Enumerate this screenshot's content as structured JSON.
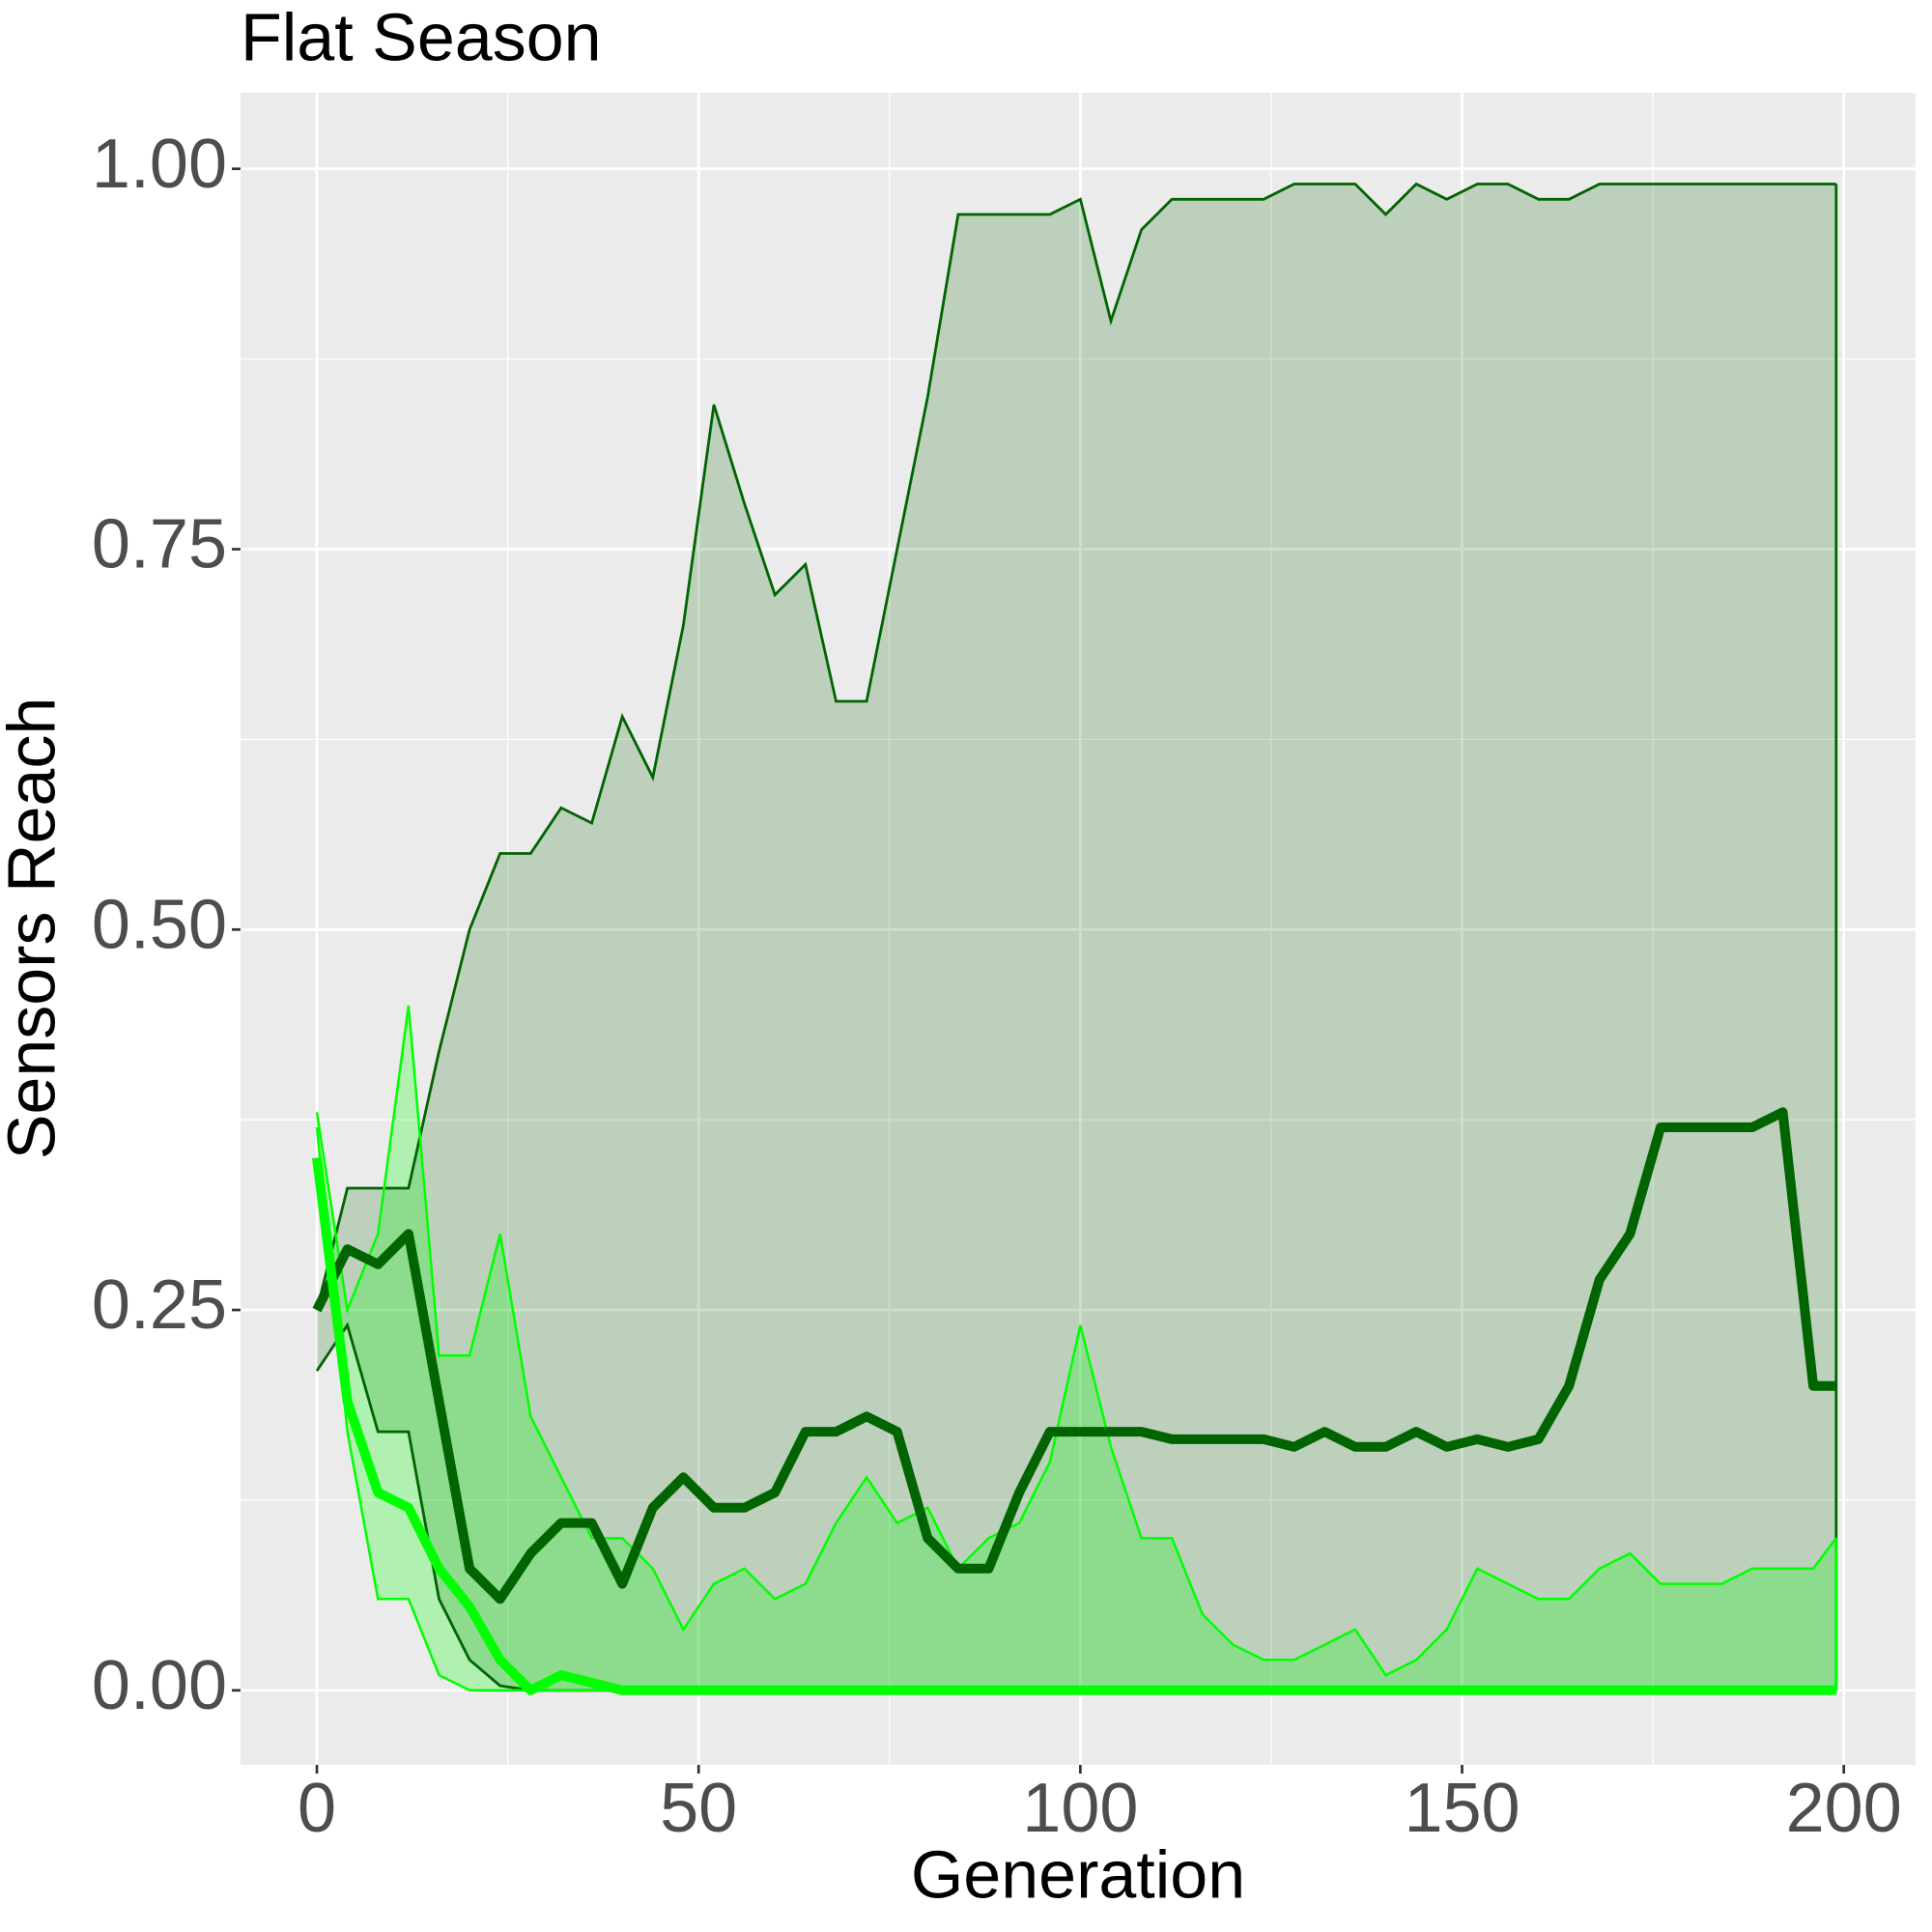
{
  "chart_data": {
    "type": "band-line",
    "title": "Flat Season",
    "x_label": "Generation",
    "y_label": "Sensors Reach",
    "x": [
      0,
      4,
      8,
      12,
      16,
      20,
      24,
      28,
      32,
      36,
      40,
      44,
      48,
      52,
      56,
      60,
      64,
      68,
      72,
      76,
      80,
      84,
      88,
      92,
      96,
      100,
      104,
      108,
      112,
      116,
      120,
      124,
      128,
      132,
      136,
      140,
      144,
      148,
      152,
      156,
      160,
      164,
      168,
      172,
      176,
      180,
      184,
      188,
      192,
      196,
      199
    ],
    "xlim": [
      -10,
      209.4
    ],
    "ylim": [
      -0.049,
      1.05
    ],
    "xticks": [
      0,
      50,
      100,
      150,
      200
    ],
    "xminor": [
      25,
      75,
      125,
      175
    ],
    "yticks": [
      {
        "value": 0,
        "label": "0.00"
      },
      {
        "value": 0.25,
        "label": "0.25"
      },
      {
        "value": 0.5,
        "label": "0.50"
      },
      {
        "value": 0.75,
        "label": "0.75"
      },
      {
        "value": 1,
        "label": "1.00"
      }
    ],
    "yminor": [
      0.125,
      0.375,
      0.625,
      0.875
    ],
    "grid": true,
    "series": [
      {
        "color": "#006400",
        "values": [
          0.25,
          0.29,
          0.28,
          0.3,
          0.19,
          0.08,
          0.06,
          0.09,
          0.11,
          0.11,
          0.07,
          0.12,
          0.14,
          0.12,
          0.12,
          0.13,
          0.17,
          0.17,
          0.18,
          0.17,
          0.1,
          0.08,
          0.08,
          0.13,
          0.17,
          0.17,
          0.17,
          0.17,
          0.165,
          0.165,
          0.165,
          0.165,
          0.16,
          0.17,
          0.16,
          0.16,
          0.17,
          0.16,
          0.165,
          0.16,
          0.165,
          0.2,
          0.27,
          0.3,
          0.37,
          0.37,
          0.37,
          0.37,
          0.38,
          0.2,
          0.2
        ],
        "upper": [
          0.25,
          0.33,
          0.33,
          0.33,
          0.42,
          0.5,
          0.55,
          0.55,
          0.58,
          0.57,
          0.64,
          0.6,
          0.7,
          0.845,
          0.78,
          0.72,
          0.74,
          0.65,
          0.65,
          0.75,
          0.85,
          0.97,
          0.97,
          0.97,
          0.97,
          0.98,
          0.9,
          0.96,
          0.98,
          0.98,
          0.98,
          0.98,
          0.99,
          0.99,
          0.99,
          0.97,
          0.99,
          0.98,
          0.99,
          0.99,
          0.98,
          0.98,
          0.99,
          0.99,
          0.99,
          0.99,
          0.99,
          0.99,
          0.99,
          0.99,
          0.99
        ],
        "lower": [
          0.21,
          0.24,
          0.17,
          0.17,
          0.06,
          0.02,
          0.003,
          0,
          0,
          0,
          0,
          0,
          0,
          0,
          0,
          0,
          0,
          0,
          0,
          0,
          0,
          0,
          0,
          0,
          0,
          0,
          0,
          0,
          0,
          0,
          0,
          0,
          0,
          0,
          0,
          0,
          0,
          0,
          0,
          0,
          0,
          0,
          0,
          0,
          0,
          0,
          0,
          0,
          0,
          0,
          0
        ]
      },
      {
        "color": "#00ff00",
        "values": [
          0.35,
          0.19,
          0.13,
          0.12,
          0.08,
          0.055,
          0.02,
          0,
          0.01,
          0.005,
          0,
          0,
          0,
          0,
          0,
          0,
          0,
          0,
          0,
          0,
          0,
          0,
          0,
          0,
          0,
          0,
          0,
          0,
          0,
          0,
          0,
          0,
          0,
          0,
          0,
          0,
          0,
          0,
          0,
          0,
          0,
          0,
          0,
          0,
          0,
          0,
          0,
          0,
          0,
          0,
          0
        ],
        "upper": [
          0.38,
          0.25,
          0.3,
          0.45,
          0.22,
          0.22,
          0.3,
          0.18,
          0.14,
          0.1,
          0.1,
          0.08,
          0.04,
          0.07,
          0.08,
          0.06,
          0.07,
          0.11,
          0.14,
          0.11,
          0.12,
          0.08,
          0.1,
          0.11,
          0.15,
          0.24,
          0.16,
          0.1,
          0.1,
          0.05,
          0.03,
          0.02,
          0.02,
          0.03,
          0.04,
          0.01,
          0.02,
          0.04,
          0.08,
          0.07,
          0.06,
          0.06,
          0.08,
          0.09,
          0.07,
          0.07,
          0.07,
          0.08,
          0.08,
          0.08,
          0.1
        ],
        "lower": [
          0.37,
          0.17,
          0.06,
          0.06,
          0.01,
          0,
          0,
          0,
          0,
          0,
          0,
          0,
          0,
          0,
          0,
          0,
          0,
          0,
          0,
          0,
          0,
          0,
          0,
          0,
          0,
          0,
          0,
          0,
          0,
          0,
          0,
          0,
          0,
          0,
          0,
          0,
          0,
          0,
          0,
          0,
          0,
          0,
          0,
          0,
          0,
          0,
          0,
          0,
          0,
          0,
          0
        ]
      }
    ]
  }
}
